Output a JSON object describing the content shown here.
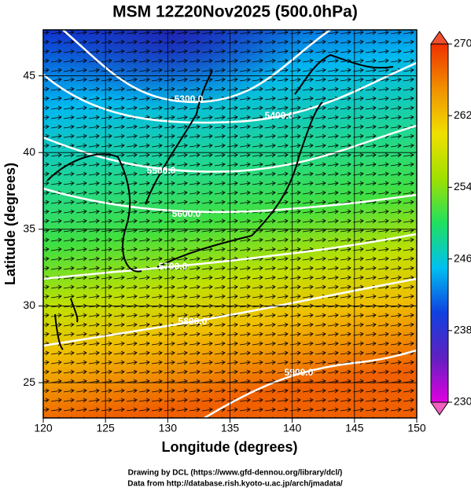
{
  "chart_data": {
    "type": "map",
    "title": "MSM 12Z20Nov2025 (500.0hPa)",
    "x_label": "Longitude (degrees)",
    "y_label": "Latitude  (degrees)",
    "xlim": [
      120,
      150
    ],
    "xticks": [
      120,
      125,
      130,
      135,
      140,
      145,
      150
    ],
    "ylim": [
      22.7,
      48.0
    ],
    "yticks": [
      25,
      30,
      35,
      40,
      45
    ],
    "grid": true,
    "colorbar": {
      "range": [
        230,
        270
      ],
      "ticks": [
        230,
        238,
        246,
        254,
        262,
        270
      ],
      "colors": [
        "#e000e0",
        "#6020c0",
        "#1040e0",
        "#00c0f0",
        "#20e060",
        "#a0e000",
        "#f0e000",
        "#f09000",
        "#f03000"
      ]
    },
    "contour_labels": [
      "5300.0",
      "5400.0",
      "5500.0",
      "5600.0",
      "5700.0",
      "5800.0",
      "5900.0"
    ],
    "footer": [
      "Drawing by DCL (https://www.gfd-dennou.org/library/dcl/)",
      "Data from http://database.rish.kyoto-u.ac.jp/arch/jmadata/"
    ]
  }
}
